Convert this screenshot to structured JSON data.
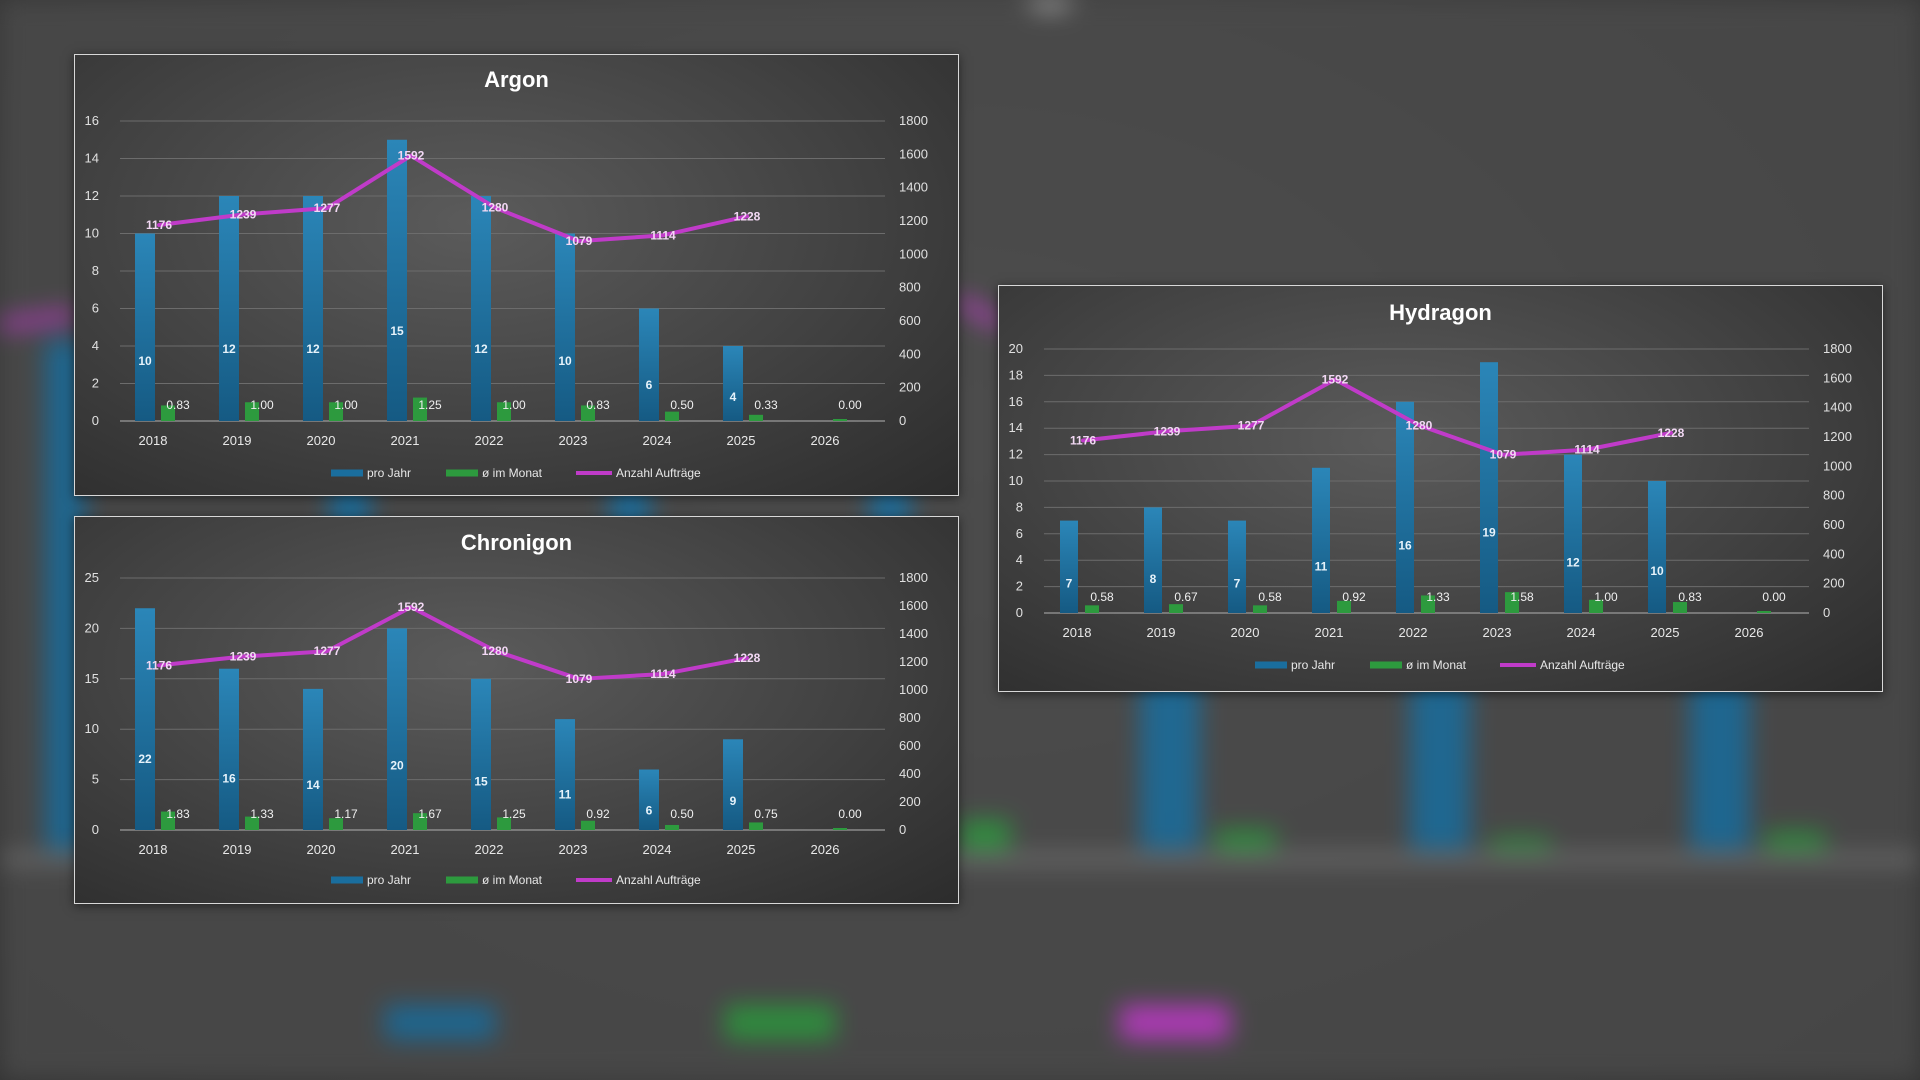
{
  "colors": {
    "bar_year": "#1a6e9e",
    "bar_month": "#2d9a3e",
    "line_orders": "#c03bc9",
    "grid": "#6c6c6c",
    "line_label": "#f2d8f4"
  },
  "chart_data": [
    {
      "id": "argon",
      "type": "bar",
      "title": "Argon",
      "categories": [
        "2018",
        "2019",
        "2020",
        "2021",
        "2022",
        "2023",
        "2024",
        "2025",
        "2026"
      ],
      "series": [
        {
          "name": "pro Jahr",
          "type": "bar",
          "axis": "left",
          "values": [
            10,
            12,
            12,
            15,
            12,
            10,
            6,
            4,
            null
          ],
          "labels": [
            "10",
            "12",
            "12",
            "15",
            "12",
            "10",
            "6",
            "4",
            ""
          ]
        },
        {
          "name": "ø im Monat",
          "type": "bar",
          "axis": "left",
          "values": [
            0.83,
            1.0,
            1.0,
            1.25,
            1.0,
            0.83,
            0.5,
            0.33,
            0.0
          ],
          "labels": [
            "0.83",
            "1.00",
            "1.00",
            "1.25",
            "1.00",
            "0.83",
            "0.50",
            "0.33",
            "0.00"
          ]
        },
        {
          "name": "Anzahl Aufträge",
          "type": "line",
          "axis": "right",
          "values": [
            1176,
            1239,
            1277,
            1592,
            1280,
            1079,
            1114,
            1228,
            null
          ],
          "labels": [
            "1176",
            "1239",
            "1277",
            "1592",
            "1280",
            "1079",
            "1114",
            "1228",
            ""
          ]
        }
      ],
      "ylim_left": [
        0,
        16
      ],
      "yticks_left": [
        "0",
        "2",
        "4",
        "6",
        "8",
        "10",
        "12",
        "14",
        "16"
      ],
      "ylim_right": [
        0,
        1800
      ],
      "yticks_right": [
        "0",
        "200",
        "400",
        "600",
        "800",
        "1000",
        "1200",
        "1400",
        "1600",
        "1800"
      ],
      "grid": true,
      "legend": "bottom"
    },
    {
      "id": "chronigon",
      "type": "bar",
      "title": "Chronigon",
      "categories": [
        "2018",
        "2019",
        "2020",
        "2021",
        "2022",
        "2023",
        "2024",
        "2025",
        "2026"
      ],
      "series": [
        {
          "name": "pro Jahr",
          "type": "bar",
          "axis": "left",
          "values": [
            22,
            16,
            14,
            20,
            15,
            11,
            6,
            9,
            null
          ],
          "labels": [
            "22",
            "16",
            "14",
            "20",
            "15",
            "11",
            "6",
            "9",
            ""
          ]
        },
        {
          "name": "ø im Monat",
          "type": "bar",
          "axis": "left",
          "values": [
            1.83,
            1.33,
            1.17,
            1.67,
            1.25,
            0.92,
            0.5,
            0.75,
            0.0
          ],
          "labels": [
            "1.83",
            "1.33",
            "1.17",
            "1.67",
            "1.25",
            "0.92",
            "0.50",
            "0.75",
            "0.00"
          ]
        },
        {
          "name": "Anzahl Aufträge",
          "type": "line",
          "axis": "right",
          "values": [
            1176,
            1239,
            1277,
            1592,
            1280,
            1079,
            1114,
            1228,
            null
          ],
          "labels": [
            "1176",
            "1239",
            "1277",
            "1592",
            "1280",
            "1079",
            "1114",
            "1228",
            ""
          ]
        }
      ],
      "ylim_left": [
        0,
        25
      ],
      "yticks_left": [
        "0",
        "5",
        "10",
        "15",
        "20",
        "25"
      ],
      "ylim_right": [
        0,
        1800
      ],
      "yticks_right": [
        "0",
        "200",
        "400",
        "600",
        "800",
        "1000",
        "1200",
        "1400",
        "1600",
        "1800"
      ],
      "grid": true,
      "legend": "bottom"
    },
    {
      "id": "hydragon",
      "type": "bar",
      "title": "Hydragon",
      "categories": [
        "2018",
        "2019",
        "2020",
        "2021",
        "2022",
        "2023",
        "2024",
        "2025",
        "2026"
      ],
      "series": [
        {
          "name": "pro Jahr",
          "type": "bar",
          "axis": "left",
          "values": [
            7,
            8,
            7,
            11,
            16,
            19,
            12,
            10,
            null
          ],
          "labels": [
            "7",
            "8",
            "7",
            "11",
            "16",
            "19",
            "12",
            "10",
            ""
          ]
        },
        {
          "name": "ø im Monat",
          "type": "bar",
          "axis": "left",
          "values": [
            0.58,
            0.67,
            0.58,
            0.92,
            1.33,
            1.58,
            1.0,
            0.83,
            0.0
          ],
          "labels": [
            "0.58",
            "0.67",
            "0.58",
            "0.92",
            "1.33",
            "1.58",
            "1.00",
            "0.83",
            "0.00"
          ]
        },
        {
          "name": "Anzahl Aufträge",
          "type": "line",
          "axis": "right",
          "values": [
            1176,
            1239,
            1277,
            1592,
            1280,
            1079,
            1114,
            1228,
            null
          ],
          "labels": [
            "1176",
            "1239",
            "1277",
            "1592",
            "1280",
            "1079",
            "1114",
            "1228",
            ""
          ]
        }
      ],
      "ylim_left": [
        0,
        20
      ],
      "yticks_left": [
        "0",
        "2",
        "4",
        "6",
        "8",
        "10",
        "12",
        "14",
        "16",
        "18",
        "20"
      ],
      "ylim_right": [
        0,
        1800
      ],
      "yticks_right": [
        "0",
        "200",
        "400",
        "600",
        "800",
        "1000",
        "1200",
        "1400",
        "1600",
        "1800"
      ],
      "grid": true,
      "legend": "bottom"
    }
  ]
}
